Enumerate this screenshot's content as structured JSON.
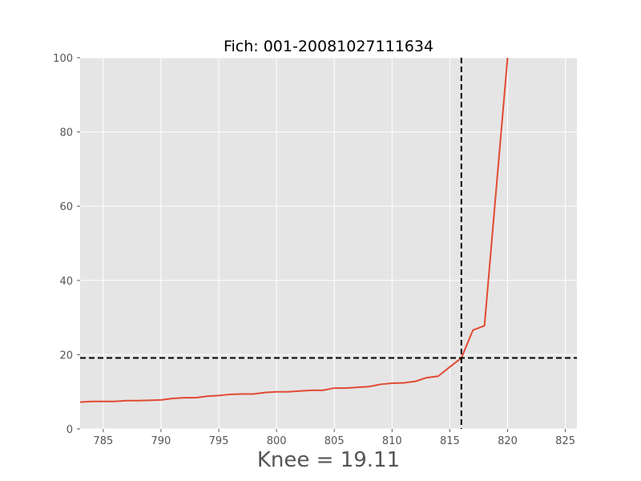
{
  "chart_data": {
    "type": "line",
    "title": "Fich: 001-20081027111634",
    "xlabel": "Knee = 19.11",
    "ylabel": "",
    "xlim": [
      783,
      826
    ],
    "ylim": [
      0,
      100
    ],
    "xticks": [
      785,
      790,
      795,
      800,
      805,
      810,
      815,
      820,
      825
    ],
    "yticks": [
      0,
      20,
      40,
      60,
      80,
      100
    ],
    "grid": true,
    "knee": {
      "x": 816,
      "y": 19.11
    },
    "colors": {
      "line": "#e24a33",
      "plot_bg": "#e5e5e5",
      "grid": "#ffffff",
      "guide": "#000000",
      "tick_text": "#555555"
    },
    "series": [
      {
        "x": [
          783,
          784,
          785,
          786,
          787,
          788,
          789,
          790,
          791,
          792,
          793,
          794,
          795,
          796,
          797,
          798,
          799,
          800,
          801,
          802,
          803,
          804,
          805,
          806,
          807,
          808,
          809,
          810,
          811,
          812,
          813,
          814,
          815,
          816,
          817,
          818,
          819,
          820
        ],
        "y": [
          7.2,
          7.4,
          7.4,
          7.4,
          7.6,
          7.6,
          7.7,
          7.8,
          8.2,
          8.4,
          8.4,
          8.8,
          9.0,
          9.3,
          9.4,
          9.4,
          9.8,
          10.0,
          10.0,
          10.2,
          10.4,
          10.4,
          11.0,
          11.0,
          11.2,
          11.4,
          12.0,
          12.3,
          12.4,
          12.8,
          13.8,
          14.2,
          16.7,
          19.1,
          26.6,
          27.8,
          64.0,
          100.0
        ]
      }
    ]
  }
}
